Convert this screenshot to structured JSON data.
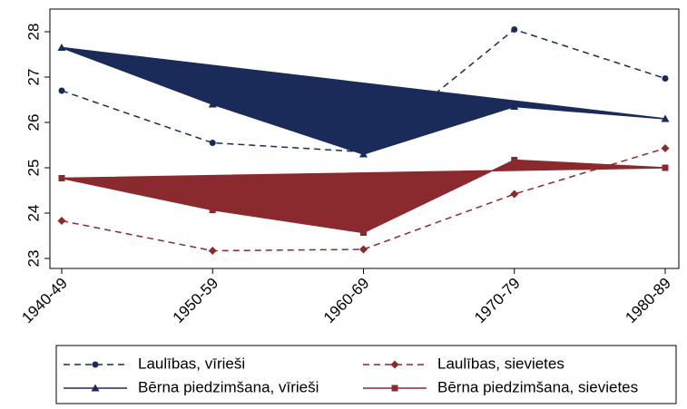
{
  "chart_data": {
    "type": "line",
    "categories": [
      "1940-49",
      "1950-59",
      "1960-69",
      "1970-79",
      "1980-89"
    ],
    "series": [
      {
        "name": "Laulības, vīrieši",
        "color": "#1a2b5a",
        "dashed": true,
        "marker": "circle",
        "filled": false,
        "values": [
          26.7,
          25.55,
          25.35,
          28.05,
          26.97
        ]
      },
      {
        "name": "Laulības, sievietes",
        "color": "#8b2a2e",
        "dashed": true,
        "marker": "diamond",
        "filled": false,
        "values": [
          23.83,
          23.17,
          23.2,
          24.42,
          25.43
        ]
      },
      {
        "name": "Bērna piedzimšana, vīrieši",
        "color": "#1a2b5a",
        "dashed": false,
        "marker": "triangle",
        "filled": true,
        "values": [
          27.65,
          26.4,
          25.3,
          26.35,
          26.08
        ]
      },
      {
        "name": "Bērna piedzimšana, sievietes",
        "color": "#8b2a2e",
        "dashed": false,
        "marker": "square",
        "filled": true,
        "values": [
          24.77,
          24.07,
          23.57,
          25.17,
          25.0
        ]
      }
    ],
    "ylim": [
      22.78,
      28.5
    ],
    "yticks": [
      23,
      24,
      25,
      26,
      27,
      28
    ],
    "grid": false
  }
}
